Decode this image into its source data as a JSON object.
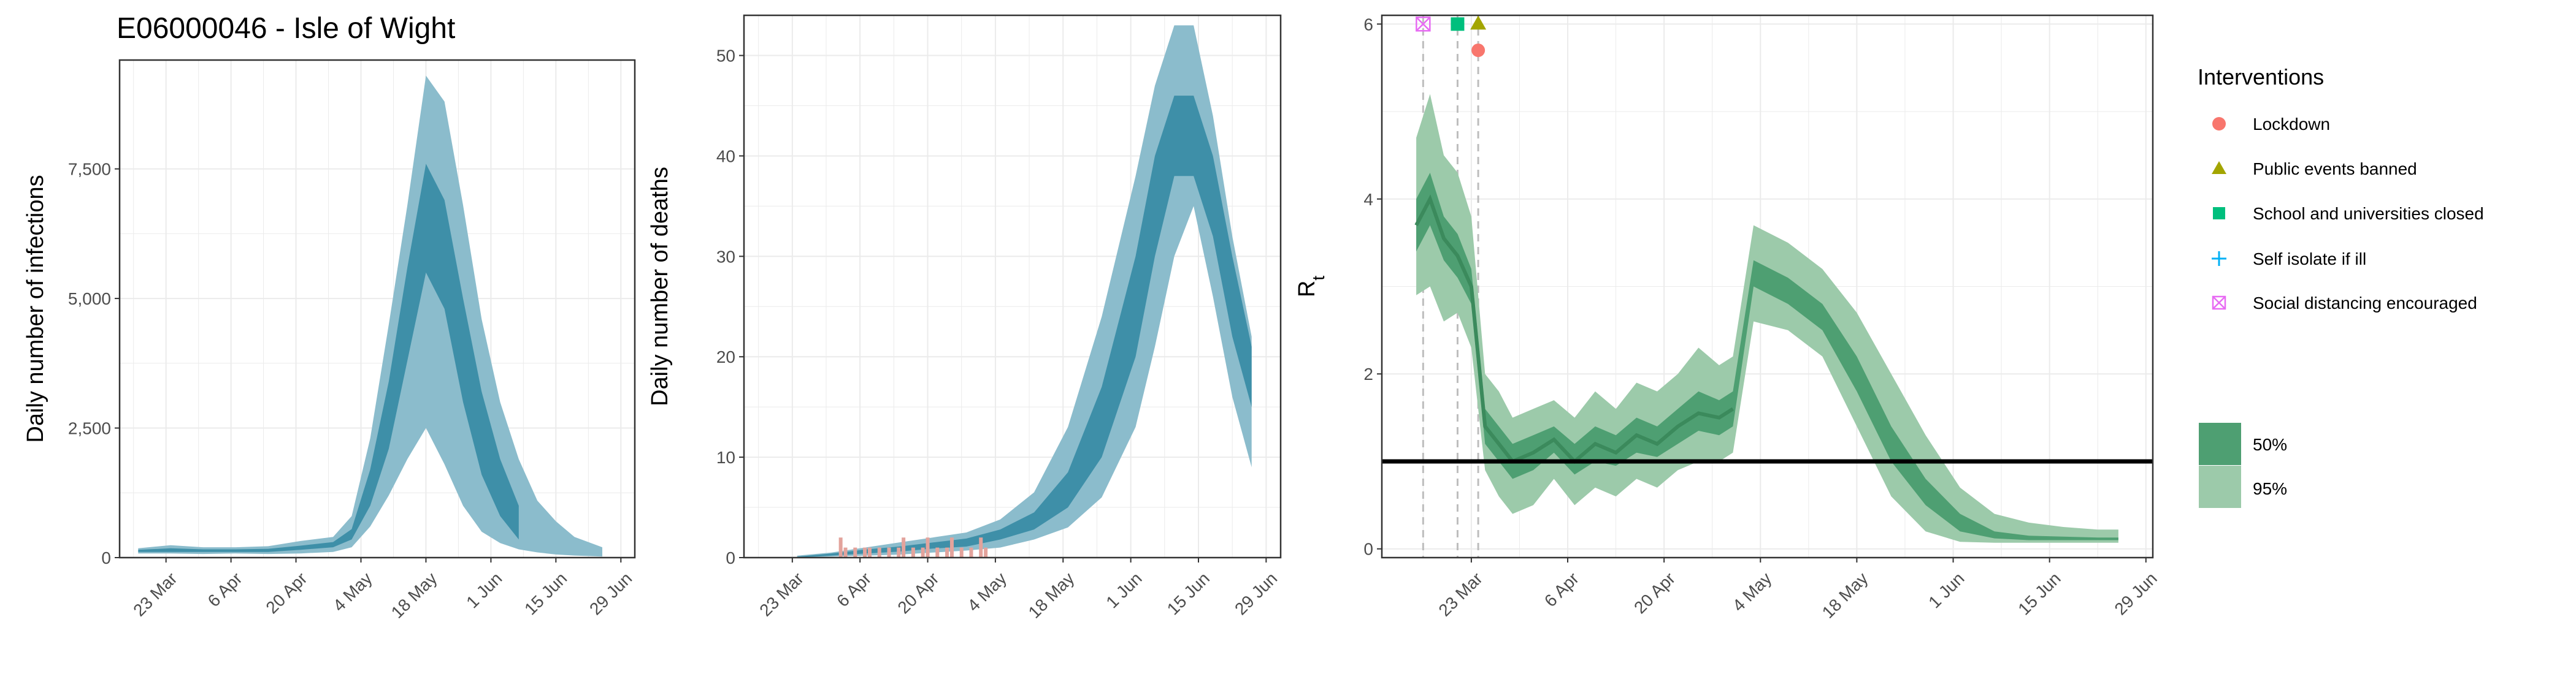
{
  "title": "E06000046 - Isle of Wight",
  "x_tick_labels": [
    "23 Mar",
    "6 Apr",
    "20 Apr",
    "4 May",
    "18 May",
    "1 Jun",
    "15 Jun",
    "29 Jun"
  ],
  "colors": {
    "ribbon_95_blue": "#8bbccc",
    "ribbon_50_blue": "#3e8fa8",
    "ribbon_95_green": "#9ccaaa",
    "ribbon_50_green": "#4e9f72",
    "line_green": "#3b8a5c",
    "death_bars": "#e3a39c",
    "gridline": "#ebebeb",
    "vline": "#bdbdbd",
    "panel_border": "#333333"
  },
  "legend": {
    "interventions_title": "Interventions",
    "interventions": [
      {
        "label": "Lockdown",
        "symbol": "circle",
        "color": "#f8766d"
      },
      {
        "label": "Public events banned",
        "symbol": "triangle",
        "color": "#a3a500"
      },
      {
        "label": "School and universities closed",
        "symbol": "square",
        "color": "#00bf7d"
      },
      {
        "label": "Self isolate if ill",
        "symbol": "cross",
        "color": "#00b0f6"
      },
      {
        "label": "Social distancing encouraged",
        "symbol": "boxed-x",
        "color": "#e76bf3"
      }
    ],
    "intervals": [
      {
        "label": "50%",
        "color": "#4e9f72"
      },
      {
        "label": "95%",
        "color": "#9ccaaa"
      }
    ]
  },
  "chart_data": [
    {
      "type": "area",
      "title": "E06000046 - Isle of Wight",
      "xlabel": "",
      "ylabel": "Daily number of infections",
      "x_date_range": [
        "2020-03-13",
        "2020-07-02"
      ],
      "ylim": [
        0,
        9600
      ],
      "y_ticks": [
        0,
        2500,
        5000,
        7500
      ],
      "y_tick_labels": [
        "0",
        "2,500",
        "5,000",
        "7,500"
      ],
      "grid": true,
      "series": [
        {
          "name": "95%",
          "x": [
            "2020-03-17",
            "2020-03-24",
            "2020-03-31",
            "2020-04-07",
            "2020-04-14",
            "2020-04-21",
            "2020-04-28",
            "2020-05-02",
            "2020-05-06",
            "2020-05-10",
            "2020-05-14",
            "2020-05-18",
            "2020-05-22",
            "2020-05-26",
            "2020-05-30",
            "2020-06-03",
            "2020-06-07",
            "2020-06-11",
            "2020-06-15",
            "2020-06-19",
            "2020-06-25"
          ],
          "lower": [
            80,
            80,
            70,
            80,
            70,
            80,
            110,
            200,
            600,
            1200,
            1900,
            2500,
            1800,
            1000,
            500,
            280,
            160,
            100,
            60,
            40,
            20
          ],
          "upper": [
            180,
            240,
            200,
            200,
            220,
            320,
            400,
            800,
            2300,
            4500,
            6800,
            9300,
            8800,
            6800,
            4600,
            3000,
            1900,
            1100,
            700,
            400,
            200
          ]
        },
        {
          "name": "50%",
          "x": [
            "2020-03-17",
            "2020-03-24",
            "2020-03-31",
            "2020-04-07",
            "2020-04-14",
            "2020-04-21",
            "2020-04-28",
            "2020-05-02",
            "2020-05-06",
            "2020-05-10",
            "2020-05-14",
            "2020-05-18",
            "2020-05-22",
            "2020-05-26",
            "2020-05-30",
            "2020-06-03",
            "2020-06-07"
          ],
          "lower": [
            110,
            110,
            110,
            110,
            110,
            150,
            200,
            350,
            1000,
            2100,
            3800,
            5500,
            4800,
            3000,
            1600,
            800,
            350
          ],
          "upper": [
            150,
            180,
            160,
            160,
            170,
            230,
            300,
            550,
            1700,
            3400,
            5600,
            7600,
            6900,
            5000,
            3200,
            1900,
            1000
          ]
        }
      ]
    },
    {
      "type": "area",
      "xlabel": "",
      "ylabel": "Daily number of deaths",
      "x_date_range": [
        "2020-03-13",
        "2020-07-02"
      ],
      "ylim": [
        0,
        54
      ],
      "y_ticks": [
        0,
        10,
        20,
        30,
        40,
        50
      ],
      "y_tick_labels": [
        "0",
        "10",
        "20",
        "30",
        "40",
        "50"
      ],
      "grid": true,
      "series": [
        {
          "name": "95%",
          "x": [
            "2020-03-24",
            "2020-03-31",
            "2020-04-07",
            "2020-04-14",
            "2020-04-21",
            "2020-04-28",
            "2020-05-05",
            "2020-05-12",
            "2020-05-19",
            "2020-05-26",
            "2020-06-02",
            "2020-06-06",
            "2020-06-10",
            "2020-06-14",
            "2020-06-18",
            "2020-06-22",
            "2020-06-26"
          ],
          "lower": [
            0,
            0.1,
            0.2,
            0.3,
            0.5,
            0.7,
            1,
            1.8,
            3,
            6,
            13,
            21,
            30,
            35,
            26,
            16,
            9
          ],
          "upper": [
            0.2,
            0.5,
            1,
            1.5,
            2,
            2.5,
            3.8,
            6.5,
            13,
            24,
            38,
            47,
            53,
            53,
            44,
            32,
            22
          ]
        },
        {
          "name": "50%",
          "x": [
            "2020-03-24",
            "2020-03-31",
            "2020-04-07",
            "2020-04-14",
            "2020-04-21",
            "2020-04-28",
            "2020-05-05",
            "2020-05-12",
            "2020-05-19",
            "2020-05-26",
            "2020-06-02",
            "2020-06-06",
            "2020-06-10",
            "2020-06-14",
            "2020-06-18",
            "2020-06-22",
            "2020-06-26"
          ],
          "lower": [
            0,
            0.2,
            0.4,
            0.6,
            0.9,
            1.1,
            1.8,
            2.8,
            5,
            10,
            20,
            30,
            38,
            38,
            32,
            22,
            15
          ],
          "upper": [
            0.1,
            0.4,
            0.8,
            1.1,
            1.5,
            1.9,
            2.8,
            4.5,
            8.5,
            17,
            30,
            40,
            46,
            46,
            40,
            30,
            21
          ]
        },
        {
          "name": "observed",
          "type": "bar",
          "x": [
            "2020-04-02",
            "2020-04-03",
            "2020-04-05",
            "2020-04-07",
            "2020-04-08",
            "2020-04-10",
            "2020-04-12",
            "2020-04-14",
            "2020-04-15",
            "2020-04-17",
            "2020-04-19",
            "2020-04-20",
            "2020-04-22",
            "2020-04-24",
            "2020-04-25",
            "2020-04-27",
            "2020-04-29",
            "2020-05-01",
            "2020-05-02"
          ],
          "values": [
            2,
            1,
            1,
            1,
            1,
            1,
            1,
            1,
            2,
            1,
            1,
            2,
            1,
            1,
            2,
            1,
            1,
            2,
            1
          ]
        }
      ]
    },
    {
      "type": "area",
      "xlabel": "",
      "ylabel": "R",
      "ylabel_subscript": "t",
      "x_date_range": [
        "2020-03-10",
        "2020-06-30"
      ],
      "ylim": [
        -0.1,
        6.1
      ],
      "y_ticks": [
        0,
        2,
        4,
        6
      ],
      "y_tick_labels": [
        "0",
        "2",
        "4",
        "6"
      ],
      "reference_line": 1,
      "grid": true,
      "series": [
        {
          "name": "95%",
          "x": [
            "2020-03-15",
            "2020-03-17",
            "2020-03-19",
            "2020-03-21",
            "2020-03-23",
            "2020-03-25",
            "2020-03-27",
            "2020-03-29",
            "2020-04-01",
            "2020-04-04",
            "2020-04-07",
            "2020-04-10",
            "2020-04-13",
            "2020-04-16",
            "2020-04-19",
            "2020-04-22",
            "2020-04-25",
            "2020-04-28",
            "2020-04-30",
            "2020-05-03",
            "2020-05-08",
            "2020-05-13",
            "2020-05-18",
            "2020-05-23",
            "2020-05-28",
            "2020-06-02",
            "2020-06-07",
            "2020-06-12",
            "2020-06-17",
            "2020-06-22",
            "2020-06-25"
          ],
          "lower": [
            2.9,
            3.0,
            2.6,
            2.7,
            2.3,
            0.9,
            0.6,
            0.4,
            0.5,
            0.8,
            0.5,
            0.7,
            0.6,
            0.8,
            0.7,
            0.9,
            1.0,
            1.0,
            1.1,
            2.6,
            2.5,
            2.2,
            1.4,
            0.6,
            0.2,
            0.08,
            0.07,
            0.07,
            0.07,
            0.07,
            0.07
          ],
          "upper": [
            4.7,
            5.2,
            4.5,
            4.3,
            3.8,
            2.0,
            1.8,
            1.5,
            1.6,
            1.7,
            1.5,
            1.8,
            1.6,
            1.9,
            1.8,
            2.0,
            2.3,
            2.1,
            2.2,
            3.7,
            3.5,
            3.2,
            2.7,
            2.0,
            1.3,
            0.7,
            0.4,
            0.3,
            0.25,
            0.22,
            0.22
          ]
        },
        {
          "name": "50%",
          "x": [
            "2020-03-15",
            "2020-03-17",
            "2020-03-19",
            "2020-03-21",
            "2020-03-23",
            "2020-03-25",
            "2020-03-27",
            "2020-03-29",
            "2020-04-01",
            "2020-04-04",
            "2020-04-07",
            "2020-04-10",
            "2020-04-13",
            "2020-04-16",
            "2020-04-19",
            "2020-04-22",
            "2020-04-25",
            "2020-04-28",
            "2020-04-30",
            "2020-05-03",
            "2020-05-08",
            "2020-05-13",
            "2020-05-18",
            "2020-05-23",
            "2020-05-28",
            "2020-06-02",
            "2020-06-07",
            "2020-06-12",
            "2020-06-17",
            "2020-06-22",
            "2020-06-25"
          ],
          "lower": [
            3.4,
            3.7,
            3.3,
            3.1,
            2.8,
            1.2,
            1.0,
            0.8,
            0.9,
            1.1,
            0.85,
            1.0,
            0.95,
            1.1,
            1.05,
            1.2,
            1.35,
            1.3,
            1.4,
            3.0,
            2.8,
            2.5,
            1.8,
            1.0,
            0.5,
            0.2,
            0.12,
            0.1,
            0.1,
            0.1,
            0.1
          ],
          "upper": [
            4.0,
            4.3,
            3.8,
            3.6,
            3.2,
            1.6,
            1.4,
            1.2,
            1.3,
            1.4,
            1.2,
            1.4,
            1.3,
            1.5,
            1.4,
            1.6,
            1.8,
            1.7,
            1.8,
            3.3,
            3.1,
            2.8,
            2.2,
            1.4,
            0.8,
            0.4,
            0.2,
            0.15,
            0.14,
            0.13,
            0.13
          ]
        },
        {
          "name": "median",
          "type": "line",
          "x": [
            "2020-03-15",
            "2020-03-17",
            "2020-03-19",
            "2020-03-21",
            "2020-03-23",
            "2020-03-25",
            "2020-03-27",
            "2020-03-29",
            "2020-04-01",
            "2020-04-04",
            "2020-04-07",
            "2020-04-10",
            "2020-04-13",
            "2020-04-16",
            "2020-04-19",
            "2020-04-22",
            "2020-04-25",
            "2020-04-28",
            "2020-04-30"
          ],
          "values": [
            3.7,
            4.0,
            3.55,
            3.35,
            3.0,
            1.4,
            1.2,
            1.0,
            1.1,
            1.25,
            1.0,
            1.2,
            1.1,
            1.3,
            1.2,
            1.4,
            1.55,
            1.5,
            1.6
          ]
        }
      ],
      "interventions": [
        {
          "label": "Social distancing encouraged",
          "date": "2020-03-16",
          "marker_value": 6,
          "symbol": "boxed-x",
          "color": "#e76bf3"
        },
        {
          "label": "School and universities closed",
          "date": "2020-03-21",
          "marker_value": 6,
          "symbol": "square",
          "color": "#00bf7d"
        },
        {
          "label": "Public events banned",
          "date": "2020-03-24",
          "marker_value": 6,
          "symbol": "triangle",
          "color": "#a3a500"
        },
        {
          "label": "Lockdown",
          "date": "2020-03-24",
          "marker_value": 5.7,
          "symbol": "circle",
          "color": "#f8766d"
        }
      ]
    }
  ]
}
